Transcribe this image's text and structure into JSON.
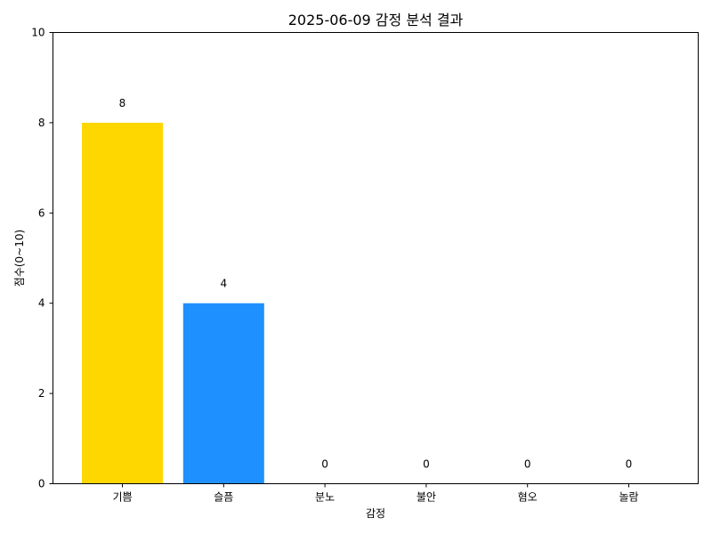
{
  "chart_data": {
    "type": "bar",
    "title": "2025-06-09 감정 분석 결과",
    "xlabel": "감정",
    "ylabel": "점수(0~10)",
    "categories": [
      "기쁨",
      "슬픔",
      "분노",
      "불안",
      "혐오",
      "놀람"
    ],
    "values": [
      8,
      4,
      0,
      0,
      0,
      0
    ],
    "colors": [
      "#FFD700",
      "#1E90FF",
      "#FF4500",
      "#9370DB",
      "#228B22",
      "#FF69B4"
    ],
    "ylim": [
      0,
      10
    ],
    "yticks": [
      0,
      2,
      4,
      6,
      8,
      10
    ],
    "grid": false,
    "legend": "none"
  }
}
